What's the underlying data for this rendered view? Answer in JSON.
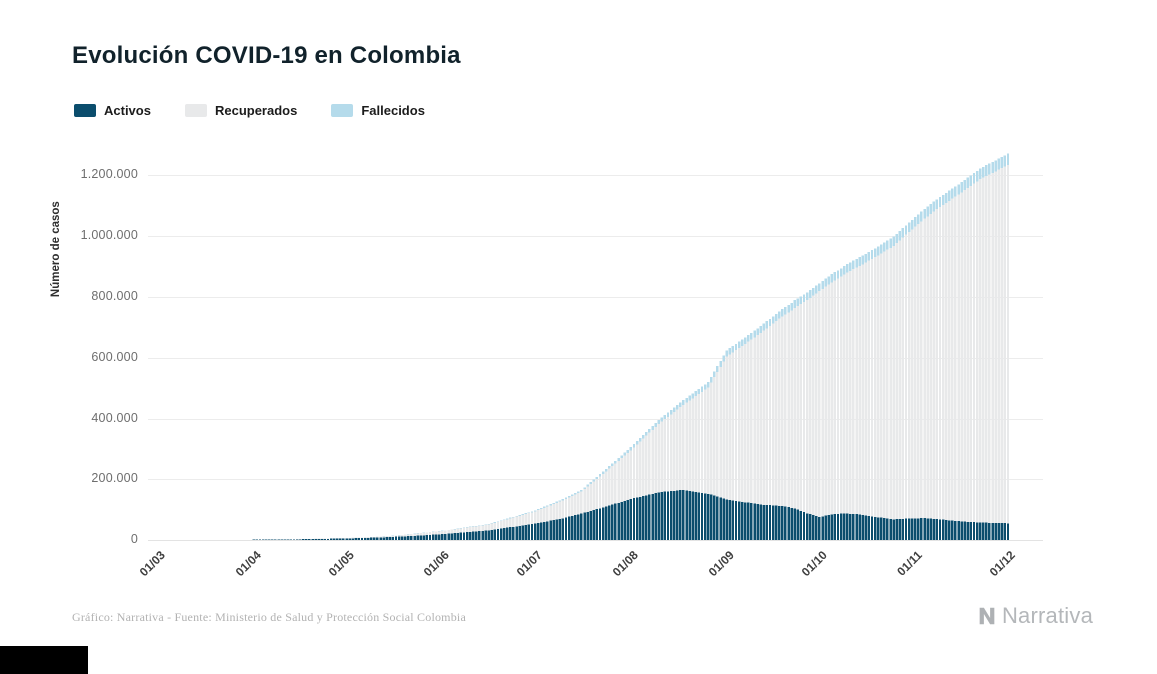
{
  "page": {
    "title": "Evolución COVID-19 en Colombia",
    "footer_source": "Gráfico: Narrativa - Fuente: Ministerio de Salud y Protección Social Colombia",
    "brand": "Narrativa"
  },
  "legend": [
    {
      "label": "Activos",
      "color": "#0b4d6d"
    },
    {
      "label": "Recuperados",
      "color": "#e8e9ea"
    },
    {
      "label": "Fallecidos",
      "color": "#b5dbeb"
    }
  ],
  "chart_data": {
    "type": "bar",
    "stacked": true,
    "title": "Evolución COVID-19 en Colombia",
    "xlabel": "",
    "ylabel": "Número de casos",
    "ylim": [
      0,
      1300000
    ],
    "grid": true,
    "legend_position": "top-left",
    "ytick_values": [
      0,
      200000,
      400000,
      600000,
      800000,
      1000000,
      1200000
    ],
    "ytick_labels": [
      "0",
      "200.000",
      "400.000",
      "600.000",
      "800.000",
      "1.000.000",
      "1.200.000"
    ],
    "x_unit": "days since 01/03",
    "days_total": 276,
    "x_ticks": [
      {
        "label": "01/03",
        "day": 0
      },
      {
        "label": "01/04",
        "day": 31
      },
      {
        "label": "01/05",
        "day": 61
      },
      {
        "label": "01/06",
        "day": 92
      },
      {
        "label": "01/07",
        "day": 122
      },
      {
        "label": "01/08",
        "day": 153
      },
      {
        "label": "01/09",
        "day": 184
      },
      {
        "label": "01/10",
        "day": 214
      },
      {
        "label": "01/11",
        "day": 245
      },
      {
        "label": "01/12",
        "day": 275
      }
    ],
    "series": [
      {
        "name": "Activos",
        "color": "#0b4d6d",
        "points": [
          [
            0,
            0
          ],
          [
            8,
            1
          ],
          [
            15,
            30
          ],
          [
            23,
            300
          ],
          [
            31,
            860
          ],
          [
            39,
            1500
          ],
          [
            46,
            2400
          ],
          [
            53,
            3600
          ],
          [
            61,
            5100
          ],
          [
            69,
            7500
          ],
          [
            76,
            10200
          ],
          [
            84,
            14500
          ],
          [
            92,
            19000
          ],
          [
            99,
            25000
          ],
          [
            107,
            32000
          ],
          [
            114,
            42000
          ],
          [
            122,
            54000
          ],
          [
            130,
            69000
          ],
          [
            137,
            87000
          ],
          [
            145,
            110000
          ],
          [
            153,
            135000
          ],
          [
            162,
            157000
          ],
          [
            170,
            165000
          ],
          [
            178,
            152000
          ],
          [
            184,
            134000
          ],
          [
            190,
            124000
          ],
          [
            196,
            116000
          ],
          [
            202,
            112000
          ],
          [
            206,
            104000
          ],
          [
            210,
            88000
          ],
          [
            214,
            76000
          ],
          [
            218,
            84000
          ],
          [
            222,
            88000
          ],
          [
            227,
            84000
          ],
          [
            232,
            76000
          ],
          [
            238,
            68000
          ],
          [
            243,
            71000
          ],
          [
            248,
            72000
          ],
          [
            253,
            68000
          ],
          [
            259,
            62000
          ],
          [
            265,
            58000
          ],
          [
            270,
            56000
          ],
          [
            275,
            55000
          ]
        ]
      },
      {
        "name": "Recuperados",
        "color": "#e8e9ea",
        "points": [
          [
            0,
            0
          ],
          [
            15,
            2
          ],
          [
            31,
            30
          ],
          [
            46,
            550
          ],
          [
            61,
            1600
          ],
          [
            76,
            3400
          ],
          [
            92,
            10600
          ],
          [
            107,
            19000
          ],
          [
            122,
            40000
          ],
          [
            137,
            72000
          ],
          [
            153,
            160000
          ],
          [
            162,
            225000
          ],
          [
            170,
            280000
          ],
          [
            178,
            350000
          ],
          [
            184,
            470000
          ],
          [
            191,
            530000
          ],
          [
            198,
            590000
          ],
          [
            205,
            650000
          ],
          [
            214,
            743000
          ],
          [
            221,
            780000
          ],
          [
            228,
            825000
          ],
          [
            238,
            900000
          ],
          [
            245,
            960000
          ],
          [
            252,
            1020000
          ],
          [
            259,
            1075000
          ],
          [
            266,
            1130000
          ],
          [
            275,
            1180000
          ]
        ]
      },
      {
        "name": "Fallecidos",
        "color": "#b5dbeb",
        "points": [
          [
            0,
            0
          ],
          [
            15,
            0
          ],
          [
            31,
            16
          ],
          [
            46,
            130
          ],
          [
            61,
            314
          ],
          [
            76,
            550
          ],
          [
            92,
            970
          ],
          [
            107,
            1700
          ],
          [
            122,
            3300
          ],
          [
            137,
            5800
          ],
          [
            153,
            10300
          ],
          [
            168,
            14500
          ],
          [
            184,
            20000
          ],
          [
            198,
            23500
          ],
          [
            214,
            26000
          ],
          [
            228,
            28400
          ],
          [
            245,
            31500
          ],
          [
            259,
            33800
          ],
          [
            275,
            36800
          ]
        ]
      }
    ],
    "note": "Daily stacked bars; values linearly interpolated between sampled points read from the chart."
  }
}
